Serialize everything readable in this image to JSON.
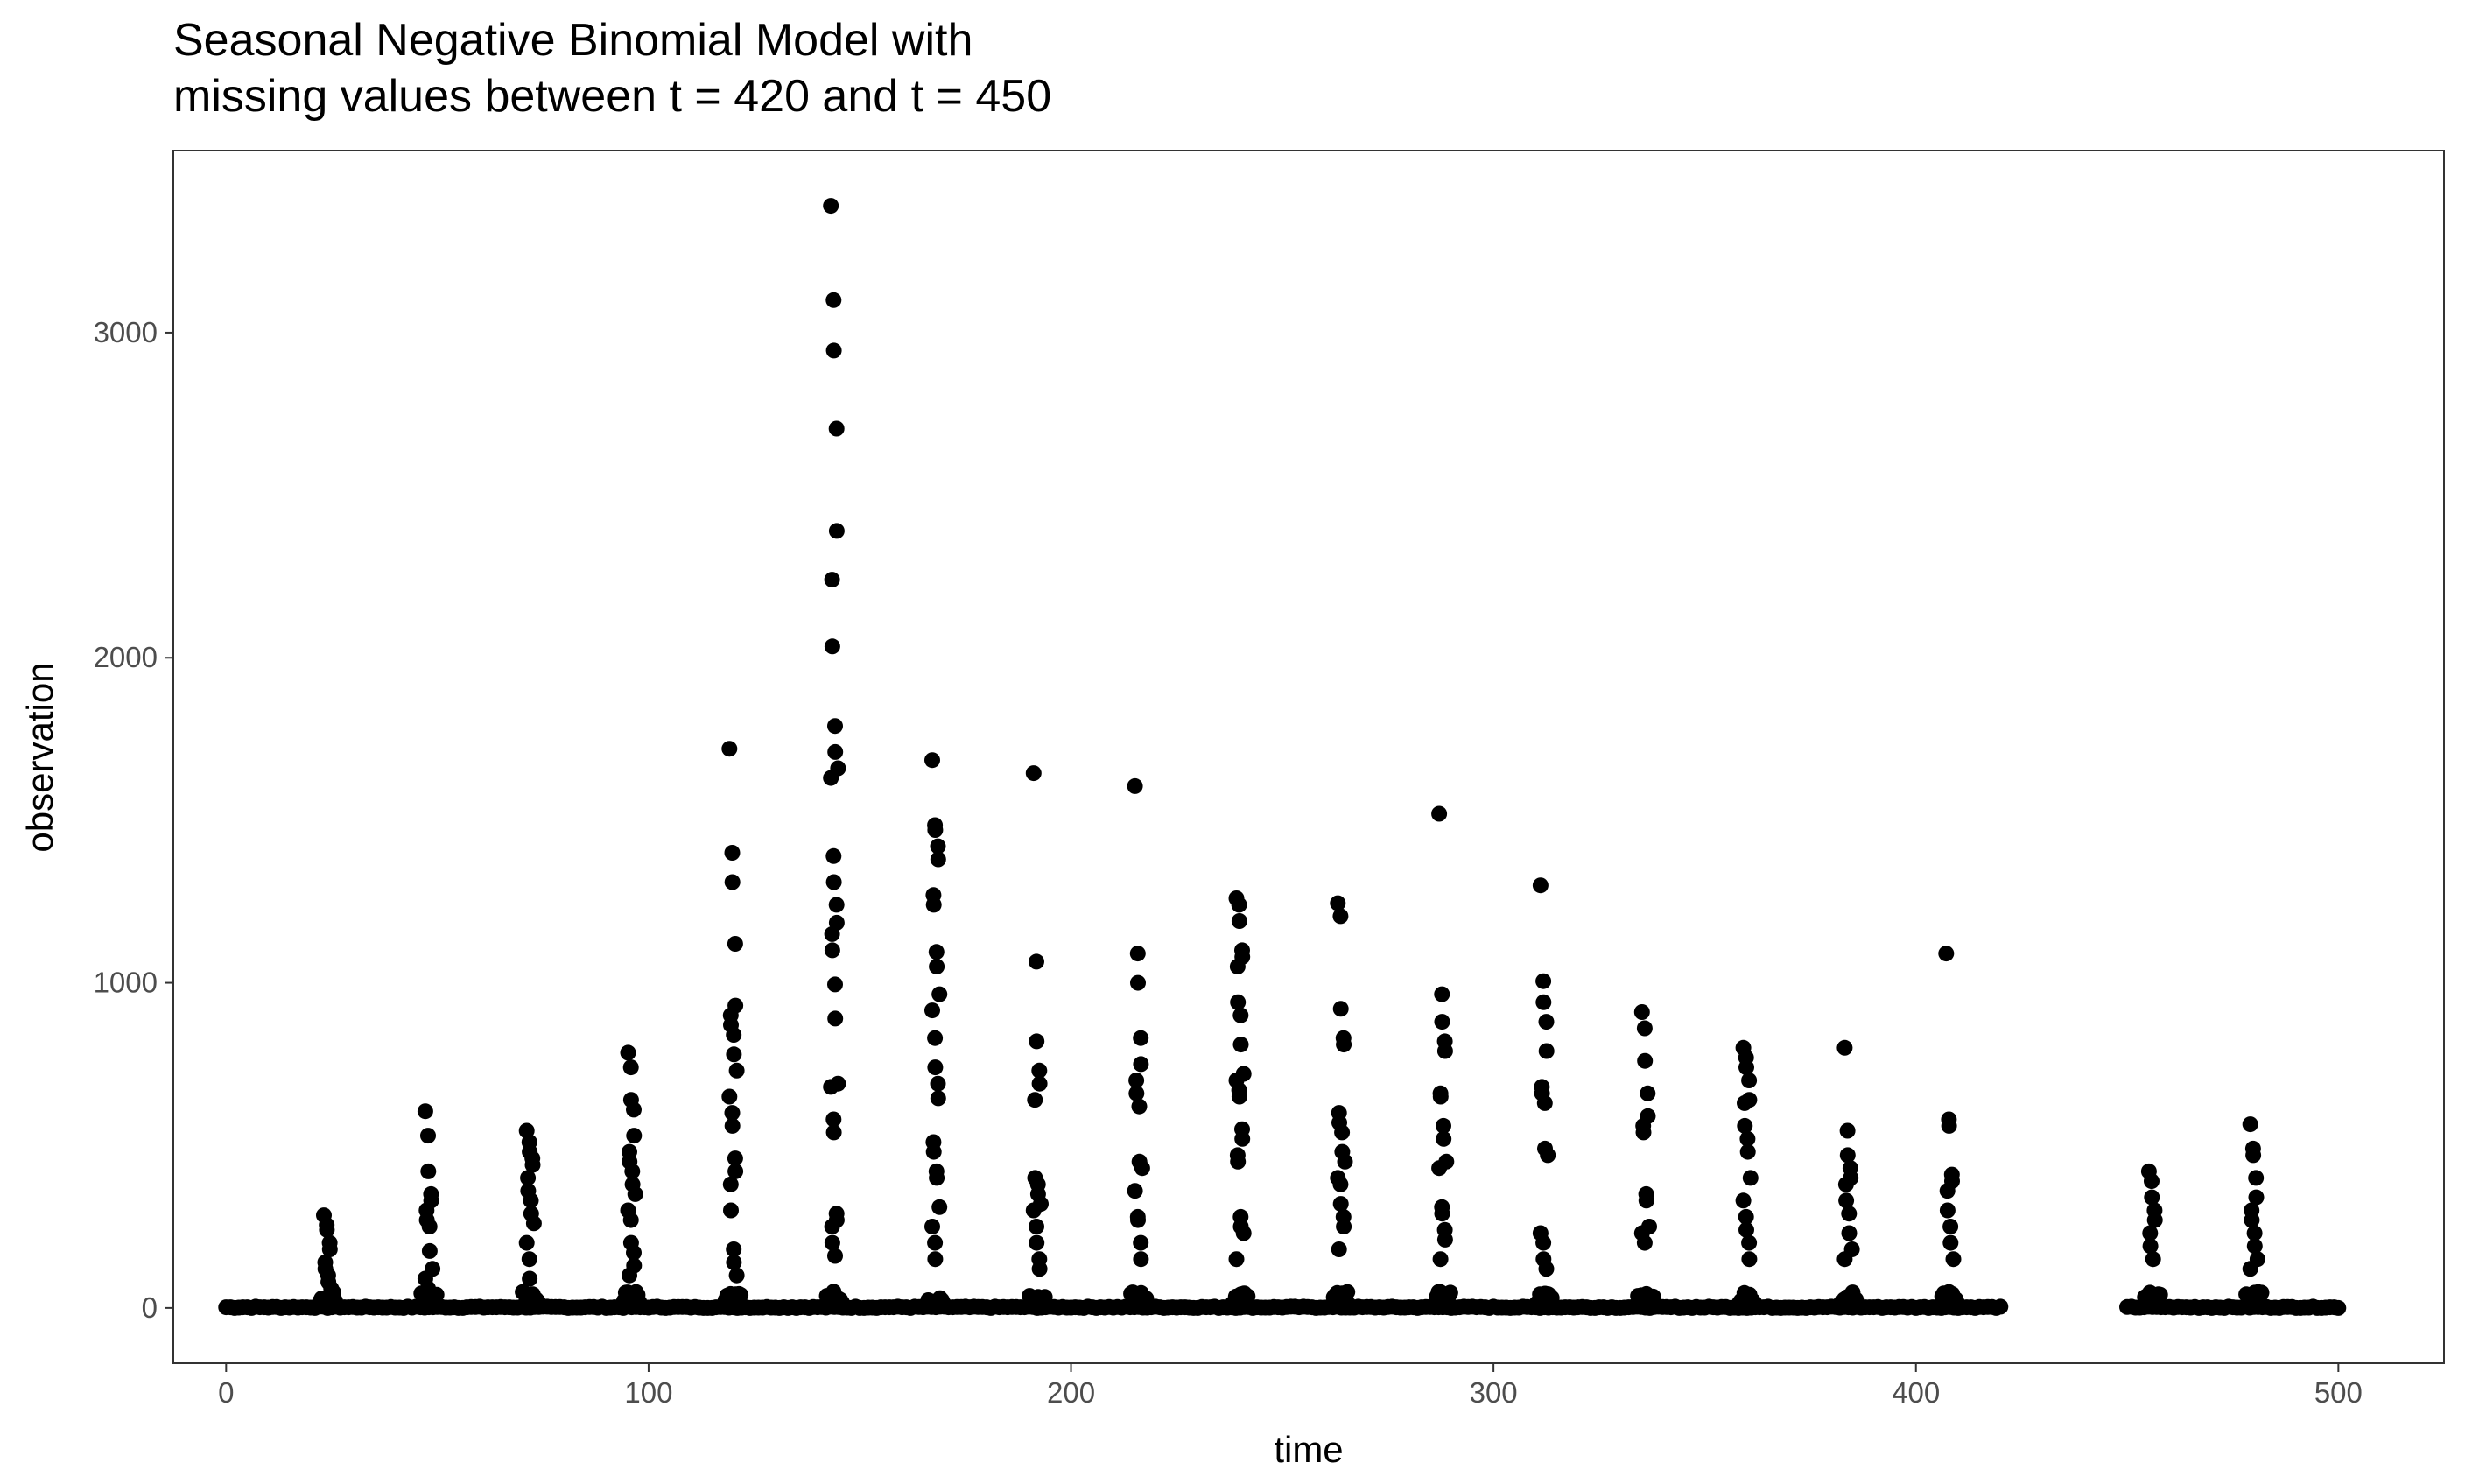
{
  "chart_data": {
    "type": "scatter",
    "title_line1": "Seasonal Negative Binomial Model with",
    "title_line2": "missing values between t = 420 and t = 450",
    "xlabel": "time",
    "ylabel": "observation",
    "xlim": [
      -12.5,
      525
    ],
    "ylim": [
      -170,
      3560
    ],
    "x_ticks": [
      0,
      100,
      200,
      300,
      400,
      500
    ],
    "y_ticks": [
      0,
      1000,
      2000,
      3000
    ],
    "grid": false,
    "point_color": "#000000",
    "baseline_value": 0,
    "missing_range": [
      420,
      450
    ],
    "peaks": [
      {
        "x": 24,
        "values": [
          285,
          255,
          240,
          200,
          180,
          140,
          120,
          100,
          80,
          60
        ]
      },
      {
        "x": 48,
        "values": [
          605,
          530,
          420,
          350,
          330,
          300,
          270,
          250,
          175,
          120,
          90,
          60
        ]
      },
      {
        "x": 72,
        "values": [
          545,
          510,
          480,
          460,
          440,
          400,
          360,
          330,
          290,
          260,
          200,
          150,
          90
        ]
      },
      {
        "x": 96,
        "values": [
          785,
          740,
          640,
          610,
          530,
          480,
          450,
          420,
          380,
          350,
          300,
          270,
          200,
          170,
          130,
          100
        ]
      },
      {
        "x": 120,
        "values": [
          1720,
          1400,
          1310,
          1120,
          930,
          900,
          870,
          840,
          780,
          730,
          650,
          600,
          560,
          460,
          420,
          380,
          300,
          180,
          140,
          100
        ]
      },
      {
        "x": 144,
        "values": [
          3390,
          3100,
          2945,
          2705,
          2390,
          2240,
          2035,
          1790,
          1710,
          1660,
          1630,
          1390,
          1310,
          1240,
          1185,
          1150,
          1100,
          995,
          890,
          690,
          680,
          580,
          540,
          290,
          270,
          250,
          200,
          160
        ]
      },
      {
        "x": 168,
        "values": [
          1685,
          1485,
          1470,
          1420,
          1380,
          1270,
          1240,
          1095,
          1050,
          965,
          915,
          830,
          740,
          690,
          645,
          510,
          480,
          420,
          400,
          310,
          250,
          200,
          150
        ]
      },
      {
        "x": 192,
        "values": [
          1645,
          1065,
          820,
          730,
          690,
          640,
          400,
          380,
          350,
          320,
          300,
          250,
          200,
          150,
          120
        ]
      },
      {
        "x": 216,
        "values": [
          1605,
          1090,
          1000,
          830,
          750,
          700,
          660,
          620,
          450,
          430,
          360,
          280,
          270,
          200,
          150
        ]
      },
      {
        "x": 240,
        "values": [
          1260,
          1240,
          1190,
          1100,
          1080,
          1050,
          940,
          900,
          810,
          720,
          700,
          670,
          650,
          550,
          520,
          470,
          450,
          280,
          250,
          230,
          150
        ]
      },
      {
        "x": 264,
        "values": [
          1245,
          1205,
          920,
          830,
          810,
          600,
          570,
          540,
          480,
          450,
          400,
          380,
          320,
          280,
          250,
          180
        ]
      },
      {
        "x": 288,
        "values": [
          1520,
          965,
          880,
          820,
          790,
          660,
          650,
          560,
          520,
          450,
          430,
          310,
          290,
          240,
          210,
          150
        ]
      },
      {
        "x": 312,
        "values": [
          1300,
          1005,
          940,
          880,
          790,
          680,
          660,
          630,
          490,
          470,
          230,
          200,
          150,
          120
        ]
      },
      {
        "x": 336,
        "values": [
          910,
          860,
          760,
          660,
          590,
          560,
          540,
          350,
          330,
          250,
          230,
          200
        ]
      },
      {
        "x": 360,
        "values": [
          800,
          770,
          740,
          700,
          640,
          630,
          560,
          520,
          480,
          400,
          330,
          280,
          240,
          200,
          150
        ]
      },
      {
        "x": 384,
        "values": [
          800,
          545,
          470,
          430,
          400,
          380,
          330,
          290,
          230,
          180,
          150
        ]
      },
      {
        "x": 408,
        "values": [
          1090,
          580,
          560,
          410,
          390,
          360,
          300,
          250,
          200,
          150
        ]
      },
      {
        "x": 456,
        "values": [
          420,
          390,
          340,
          300,
          270,
          230,
          190,
          150
        ]
      },
      {
        "x": 480,
        "values": [
          565,
          490,
          470,
          400,
          340,
          300,
          270,
          230,
          190,
          150,
          120
        ]
      }
    ]
  }
}
